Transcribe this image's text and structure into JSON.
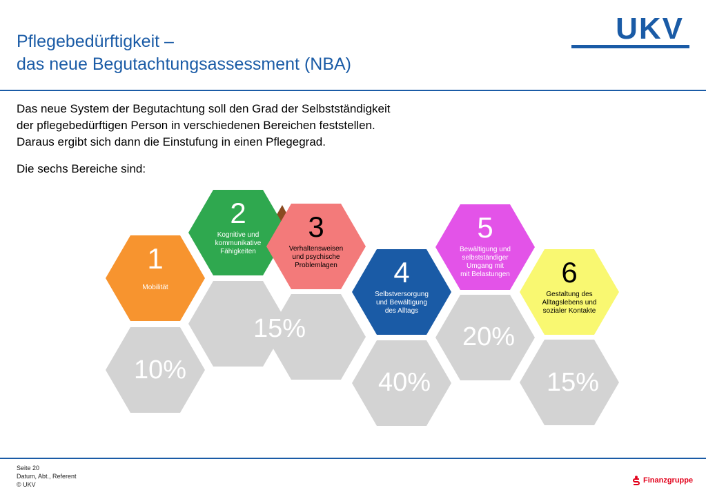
{
  "header": {
    "title_line1": "Pflegebedürftigkeit –",
    "title_line2": "das neue Begutachtungsassessment (NBA)",
    "logo": "UKV"
  },
  "intro": {
    "line1": "Das neue System der Begutachtung soll den Grad der Selbstständigkeit",
    "line2": "der pflegebedürftigen Person in verschiedenen Bereichen feststellen.",
    "line3": "Daraus ergibt sich dann die Einstufung in einen Pflegegrad.",
    "lead": "Die sechs Bereiche sind:"
  },
  "areas": [
    {
      "number": "1",
      "label": [
        "Mobilität"
      ],
      "weight": "10%",
      "color": "#f7942f"
    },
    {
      "number": "2",
      "label": [
        "Kognitive und",
        "kommunikative",
        "Fähigkeiten"
      ],
      "weight": "15%",
      "color": "#2fa84f"
    },
    {
      "number": "3",
      "label": [
        "Verhaltensweisen",
        "und psychische",
        "Problemlagen"
      ],
      "weight": "",
      "color": "#f37a7a"
    },
    {
      "number": "4",
      "label": [
        "Selbstversorgung",
        "und Bewältigung",
        "des Alltags"
      ],
      "weight": "40%",
      "color": "#1a5ba6"
    },
    {
      "number": "5",
      "label": [
        "Bewältigung und",
        "selbstständiger",
        "Umgang mit",
        "mit Belastungen"
      ],
      "weight": "20%",
      "color": "#e353e8"
    },
    {
      "number": "6",
      "label": [
        "Gestaltung des",
        "Alltagslebens und",
        "sozialer Kontakte"
      ],
      "weight": "15%",
      "color": "#f9f871"
    }
  ],
  "colors": {
    "accent": "#1a5ba6",
    "weight_hex": "#d3d3d3",
    "overlap": "#8a4a20"
  },
  "footer": {
    "page": "Seite 20",
    "meta": "Datum, Abt., Referent",
    "copyright": "© UKV",
    "partner": "Finanzgruppe"
  }
}
